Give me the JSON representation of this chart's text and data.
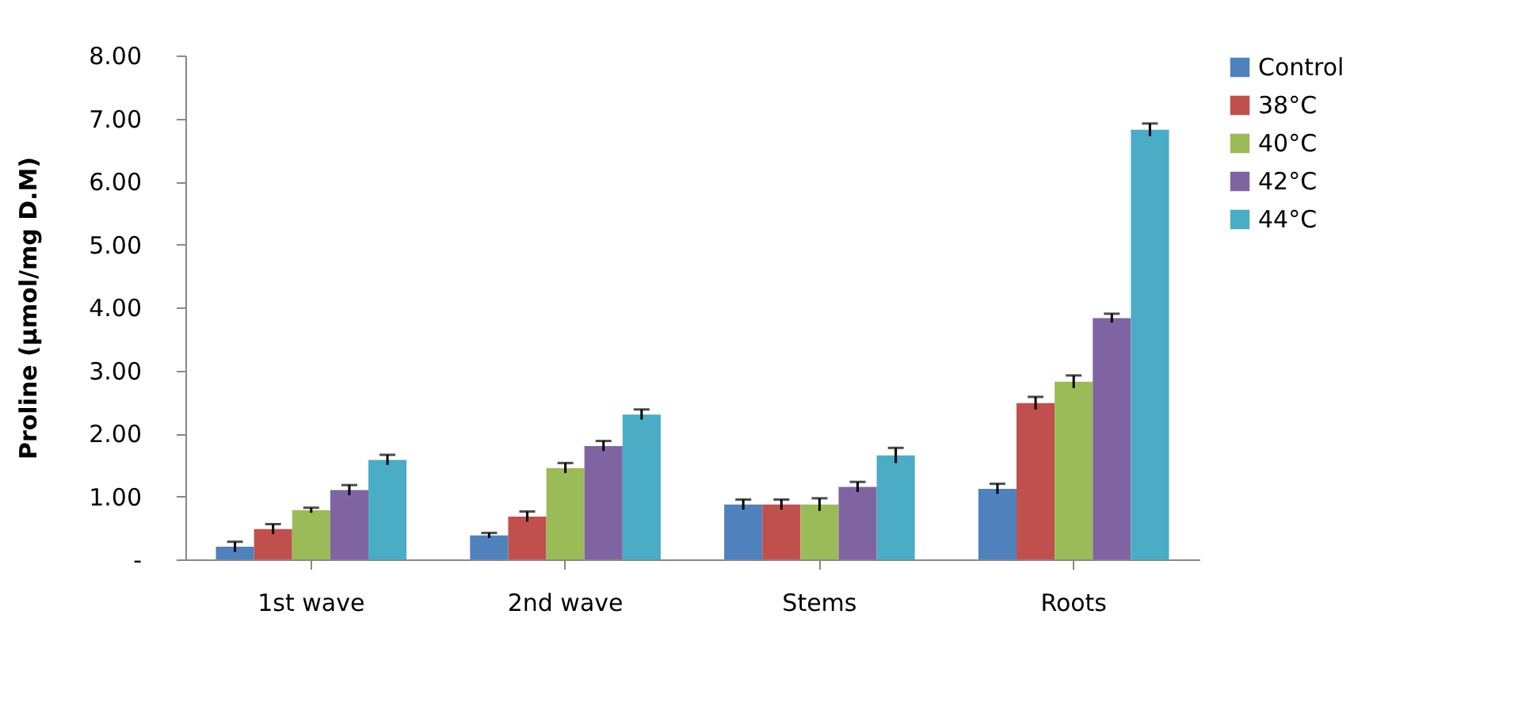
{
  "chart_data": {
    "type": "bar",
    "ylabel": "Proline (µmol/mg D.M)",
    "categories": [
      "1st wave",
      "2nd wave",
      "Stems",
      "Roots"
    ],
    "ylim": [
      0,
      8
    ],
    "yticks": [
      {
        "value": 0,
        "label": "-"
      },
      {
        "value": 1,
        "label": "1.00"
      },
      {
        "value": 2,
        "label": "2.00"
      },
      {
        "value": 3,
        "label": "3.00"
      },
      {
        "value": 4,
        "label": "4.00"
      },
      {
        "value": 5,
        "label": "5.00"
      },
      {
        "value": 6,
        "label": "6.00"
      },
      {
        "value": 7,
        "label": "7.00"
      },
      {
        "value": 8,
        "label": "8.00"
      }
    ],
    "grid": false,
    "legend": "top right",
    "series": [
      {
        "name": "Control",
        "color": "#4f81bd",
        "values": [
          0.2,
          0.38,
          0.87,
          1.12
        ],
        "errors": [
          0.08,
          0.04,
          0.08,
          0.08
        ]
      },
      {
        "name": "38°C",
        "color": "#c0504d",
        "values": [
          0.48,
          0.68,
          0.87,
          2.48
        ],
        "errors": [
          0.08,
          0.08,
          0.08,
          0.1
        ]
      },
      {
        "name": "40°C",
        "color": "#9bbb59",
        "values": [
          0.78,
          1.45,
          0.87,
          2.82
        ],
        "errors": [
          0.04,
          0.08,
          0.1,
          0.1
        ]
      },
      {
        "name": "42°C",
        "color": "#8064a2",
        "values": [
          1.1,
          1.8,
          1.15,
          3.83
        ],
        "errors": [
          0.08,
          0.08,
          0.08,
          0.07
        ]
      },
      {
        "name": "44°C",
        "color": "#4bacc6",
        "values": [
          1.58,
          2.3,
          1.65,
          6.82
        ],
        "errors": [
          0.08,
          0.08,
          0.12,
          0.1
        ]
      }
    ]
  }
}
